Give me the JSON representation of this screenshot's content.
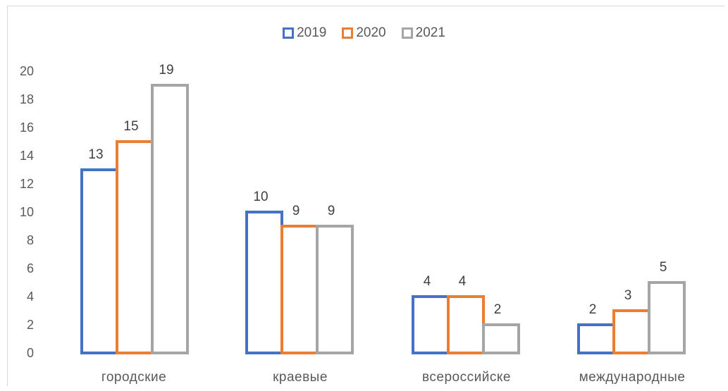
{
  "chart_data": {
    "type": "bar",
    "title": "",
    "xlabel": "",
    "ylabel": "",
    "ylim": [
      0,
      20
    ],
    "yticks": [
      0,
      2,
      4,
      6,
      8,
      10,
      12,
      14,
      16,
      18,
      20
    ],
    "grid": false,
    "legend_position": "top",
    "categories": [
      "городские",
      "краевые",
      "всероссийске",
      "международные"
    ],
    "series": [
      {
        "name": "2019",
        "color": "#4472c4",
        "values": [
          13,
          10,
          4,
          2
        ]
      },
      {
        "name": "2020",
        "color": "#ed7d31",
        "values": [
          15,
          9,
          4,
          3
        ]
      },
      {
        "name": "2021",
        "color": "#a5a5a5",
        "values": [
          19,
          9,
          2,
          5
        ]
      }
    ]
  }
}
